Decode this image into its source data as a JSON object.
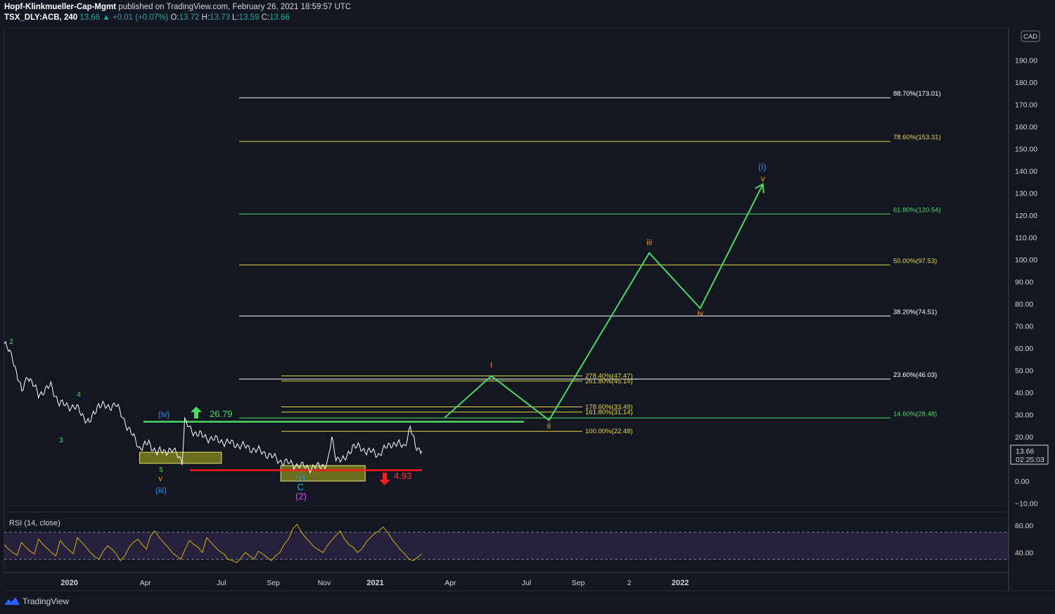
{
  "header": {
    "author": "Hopf-Klinkmueller-Cap-Mgmt",
    "published": "published on TradingView.com, February 26, 2021 18:59:57 UTC",
    "symbol": "TSX_DLY:ACB, 240",
    "last": "13.66",
    "change": "▲ +0.01 (+0.07%)",
    "o_label": "O:",
    "o": "13.72",
    "h_label": "H:",
    "h": "13.73",
    "l_label": "L:",
    "l": "13.59",
    "c_label": "C:",
    "c": "13.66"
  },
  "currency": "CAD",
  "price_tag": {
    "price": "13.66",
    "countdown": "02:25:03"
  },
  "rsi_label": "RSI (14, close)",
  "footer_brand": "TradingView",
  "colors": {
    "background": "#131722",
    "price_line": "#ffffff",
    "projection": "#4cd964",
    "rsi": "#d4b400",
    "support": "#ff0000",
    "box": "#8a8a1e"
  },
  "chart_data": {
    "type": "line",
    "y_axis": {
      "range": [
        -13,
        205
      ],
      "ticks": [
        -10,
        0,
        10,
        20,
        30,
        40,
        50,
        60,
        70,
        80,
        90,
        100,
        110,
        120,
        130,
        140,
        150,
        160,
        170,
        180,
        190
      ],
      "tick_labels": [
        "−10.00",
        "0.00",
        "10.00",
        "20.00",
        "30.00",
        "40.00",
        "50.00",
        "60.00",
        "70.00",
        "80.00",
        "90.00",
        "100.00",
        "110.00",
        "120.00",
        "130.00",
        "140.00",
        "150.00",
        "160.00",
        "170.00",
        "180.00",
        "190.00"
      ]
    },
    "x_axis": {
      "labels": [
        "2020",
        "Apr",
        "Jul",
        "Sep",
        "Nov",
        "2021",
        "Apr",
        "Jul",
        "Sep",
        "2",
        "2022"
      ],
      "dates": [
        "2020-01",
        "2020-04",
        "2020-07",
        "2020-09",
        "2020-11",
        "2021-01",
        "2021-04",
        "2021-07",
        "2021-09",
        "2021-11",
        "2022-01"
      ]
    },
    "price_series": {
      "name": "ACB",
      "points": [
        [
          "2019-10-15",
          62
        ],
        [
          "2019-10-25",
          56
        ],
        [
          "2019-11-05",
          40
        ],
        [
          "2019-11-12",
          48
        ],
        [
          "2019-11-25",
          39
        ],
        [
          "2019-12-10",
          43
        ],
        [
          "2019-12-20",
          35
        ],
        [
          "2020-01-10",
          33
        ],
        [
          "2020-01-25",
          26
        ],
        [
          "2020-02-05",
          35
        ],
        [
          "2020-02-15",
          33
        ],
        [
          "2020-02-25",
          35
        ],
        [
          "2020-03-10",
          25
        ],
        [
          "2020-03-25",
          15
        ],
        [
          "2020-04-05",
          17
        ],
        [
          "2020-04-15",
          13
        ],
        [
          "2020-05-01",
          14
        ],
        [
          "2020-05-10",
          12
        ],
        [
          "2020-05-15",
          9
        ],
        [
          "2020-05-18",
          27
        ],
        [
          "2020-05-25",
          23
        ],
        [
          "2020-06-10",
          20
        ],
        [
          "2020-07-01",
          18
        ],
        [
          "2020-07-25",
          16
        ],
        [
          "2020-08-20",
          13
        ],
        [
          "2020-09-10",
          9
        ],
        [
          "2020-10-01",
          7
        ],
        [
          "2020-10-15",
          6
        ],
        [
          "2020-10-25",
          6.5
        ],
        [
          "2020-11-05",
          8
        ],
        [
          "2020-11-10",
          19
        ],
        [
          "2020-11-15",
          11
        ],
        [
          "2020-11-25",
          9
        ],
        [
          "2020-12-05",
          16
        ],
        [
          "2020-12-20",
          14
        ],
        [
          "2021-01-05",
          12
        ],
        [
          "2021-01-20",
          17
        ],
        [
          "2021-02-05",
          16
        ],
        [
          "2021-02-12",
          24
        ],
        [
          "2021-02-18",
          16
        ],
        [
          "2021-02-26",
          13.66
        ]
      ]
    },
    "projection": {
      "name": "",
      "points": [
        [
          "2021-03-25",
          28.5
        ],
        [
          "2021-05-20",
          47.5
        ],
        [
          "2021-07-28",
          27.5
        ],
        [
          "2021-11-25",
          103
        ],
        [
          "2022-01-25",
          78
        ],
        [
          "2022-04-10",
          134
        ]
      ],
      "wave_labels": [
        "i",
        "ii",
        "iii",
        "iv",
        "v"
      ],
      "arrow_target": "(i)"
    },
    "fib_extensions": [
      {
        "label": "278.40%(47.47)",
        "value": 47.47
      },
      {
        "label": "261.80%(45.14)",
        "value": 45.14
      },
      {
        "label": "178.60%(33.49)",
        "value": 33.49
      },
      {
        "label": "161.80%(31.14)",
        "value": 31.14
      },
      {
        "label": "100.00%(22.48)",
        "value": 22.48
      }
    ],
    "fib_retracements": [
      {
        "label": "88.70%(173.01)",
        "value": 173.01
      },
      {
        "label": "78.60%(153.31)",
        "value": 153.31
      },
      {
        "label": "61.80%(120.54)",
        "value": 120.54
      },
      {
        "label": "50.00%(97.53)",
        "value": 97.53
      },
      {
        "label": "38.20%(74.51)",
        "value": 74.51
      },
      {
        "label": "23.60%(46.03)",
        "value": 46.03
      },
      {
        "label": "14.60%(28.48)",
        "value": 28.48
      }
    ],
    "levels": [
      {
        "label": "26.79",
        "value": 26.79,
        "direction": "up"
      },
      {
        "label": "4.93",
        "value": 4.93,
        "direction": "down"
      }
    ],
    "zones": [
      {
        "from_date": "2020-03-25",
        "to_date": "2020-07-01",
        "low": 8,
        "high": 13
      },
      {
        "from_date": "2020-09-10",
        "to_date": "2020-12-20",
        "low": 0,
        "high": 7
      }
    ],
    "wave_labels_history": [
      "2",
      "3",
      "4",
      "5",
      "v",
      "(iii)",
      "(iv)",
      "(v)",
      "C",
      "(2)"
    ],
    "rsi": {
      "name": "RSI (14, close)",
      "ticks": [
        40,
        80
      ],
      "tick_labels": [
        "40.00",
        "80.00"
      ],
      "band": [
        30,
        70
      ],
      "values": [
        52,
        45,
        40,
        36,
        55,
        48,
        42,
        38,
        60,
        52,
        46,
        40,
        35,
        58,
        50,
        44,
        38,
        62,
        55,
        48,
        40,
        34,
        30,
        42,
        50,
        45,
        38,
        28,
        35,
        48,
        55,
        60,
        52,
        45,
        65,
        72,
        62,
        55,
        48,
        40,
        35,
        30,
        45,
        58,
        52,
        48,
        40,
        62,
        55,
        48,
        42,
        38,
        30,
        28,
        25,
        32,
        40,
        35,
        30,
        42,
        38,
        33,
        28,
        35,
        40,
        52,
        60,
        75,
        82,
        70,
        62,
        55,
        48,
        44,
        40,
        50,
        58,
        65,
        72,
        60,
        52,
        48,
        40,
        45,
        55,
        62,
        68,
        72,
        78,
        70,
        60,
        52,
        44,
        38,
        30,
        28,
        33,
        38
      ]
    }
  }
}
